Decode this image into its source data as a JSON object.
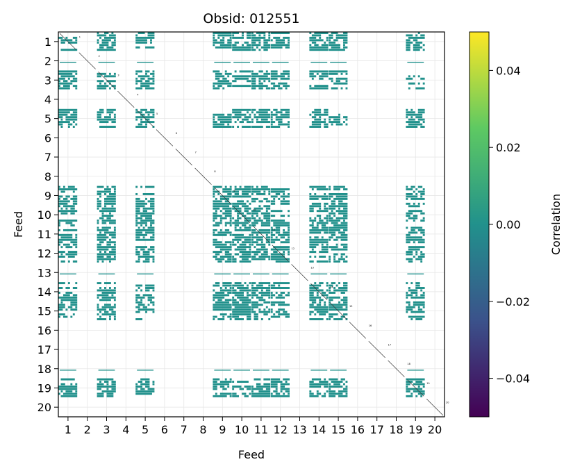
{
  "chart_data": {
    "type": "heatmap",
    "title": "Obsid: 012551",
    "xlabel": "Feed",
    "ylabel": "Feed",
    "x_ticks": [
      "1",
      "2",
      "3",
      "4",
      "5",
      "6",
      "7",
      "8",
      "9",
      "10",
      "11",
      "12",
      "13",
      "14",
      "15",
      "16",
      "17",
      "18",
      "19",
      "20"
    ],
    "y_ticks": [
      "1",
      "2",
      "3",
      "4",
      "5",
      "6",
      "7",
      "8",
      "9",
      "10",
      "11",
      "12",
      "13",
      "14",
      "15",
      "16",
      "17",
      "18",
      "19",
      "20"
    ],
    "xlim": [
      0.5,
      20.5
    ],
    "ylim": [
      20.5,
      0.5
    ],
    "grid": true,
    "colorbar": {
      "label": "Correlation",
      "range": [
        -0.05,
        0.05
      ],
      "ticks": [
        0.04,
        0.02,
        0.0,
        -0.02,
        -0.04
      ],
      "tick_labels": [
        "0.04",
        "0.02",
        "0.00",
        "−0.02",
        "−0.04"
      ],
      "colormap": "viridis",
      "stops": [
        "#440154",
        "#3b528b",
        "#21918c",
        "#5ec962",
        "#fde725"
      ]
    },
    "value_color": "#21918c",
    "note": "All displayed (non-blank) cells have correlation ≈ 0.00; blank cells are masked/NaN.",
    "active_feeds_rows": [
      1,
      3,
      5,
      9,
      10,
      11,
      12,
      14,
      15,
      19
    ],
    "active_feeds_cols": [
      1,
      3,
      5,
      9,
      10,
      11,
      12,
      14,
      15,
      19
    ],
    "partial_rows": [
      2,
      13,
      18
    ],
    "diagonal_labels": [
      "1",
      "2",
      "3",
      "4",
      "5",
      "6",
      "7",
      "8",
      "9",
      "10",
      "11",
      "12",
      "13",
      "14",
      "15",
      "16",
      "17",
      "18",
      "19",
      "20"
    ]
  }
}
